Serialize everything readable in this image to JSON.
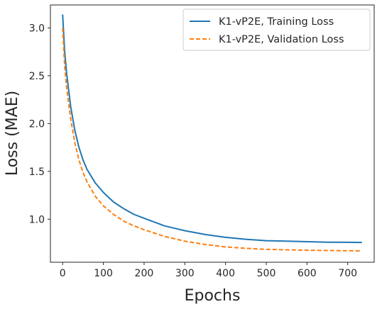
{
  "chart_data": {
    "type": "line",
    "title": "",
    "xlabel": "Epochs",
    "ylabel": "Loss (MAE)",
    "xlim": [
      -30,
      765
    ],
    "ylim": [
      0.55,
      3.24
    ],
    "xticks": [
      0,
      100,
      200,
      300,
      400,
      500,
      600,
      700
    ],
    "yticks": [
      1.0,
      1.5,
      2.0,
      2.5,
      3.0
    ],
    "xtick_labels": [
      "0",
      "100",
      "200",
      "300",
      "400",
      "500",
      "600",
      "700"
    ],
    "ytick_labels": [
      "1.0",
      "1.5",
      "2.0",
      "2.5",
      "3.0"
    ],
    "grid": false,
    "legend_position": "top-right",
    "series": [
      {
        "name": "K1-vP2E, Training Loss",
        "color": "#1f77b4",
        "style": "solid",
        "x": [
          0,
          5,
          10,
          20,
          30,
          40,
          50,
          60,
          80,
          100,
          125,
          150,
          175,
          200,
          250,
          300,
          350,
          400,
          450,
          500,
          550,
          600,
          650,
          700,
          735
        ],
        "y": [
          3.14,
          2.75,
          2.52,
          2.17,
          1.93,
          1.75,
          1.62,
          1.52,
          1.38,
          1.28,
          1.18,
          1.11,
          1.05,
          1.01,
          0.93,
          0.88,
          0.84,
          0.81,
          0.79,
          0.775,
          0.77,
          0.765,
          0.76,
          0.758,
          0.757
        ]
      },
      {
        "name": "K1-vP2E, Validation Loss",
        "color": "#ff7f0e",
        "style": "dashed",
        "x": [
          0,
          5,
          10,
          20,
          30,
          40,
          50,
          60,
          80,
          100,
          125,
          150,
          175,
          200,
          250,
          300,
          350,
          400,
          450,
          500,
          550,
          600,
          650,
          700,
          735
        ],
        "y": [
          3.0,
          2.6,
          2.37,
          2.04,
          1.8,
          1.62,
          1.49,
          1.39,
          1.24,
          1.14,
          1.05,
          0.98,
          0.93,
          0.89,
          0.82,
          0.77,
          0.735,
          0.71,
          0.695,
          0.685,
          0.68,
          0.675,
          0.672,
          0.67,
          0.669
        ]
      }
    ]
  }
}
